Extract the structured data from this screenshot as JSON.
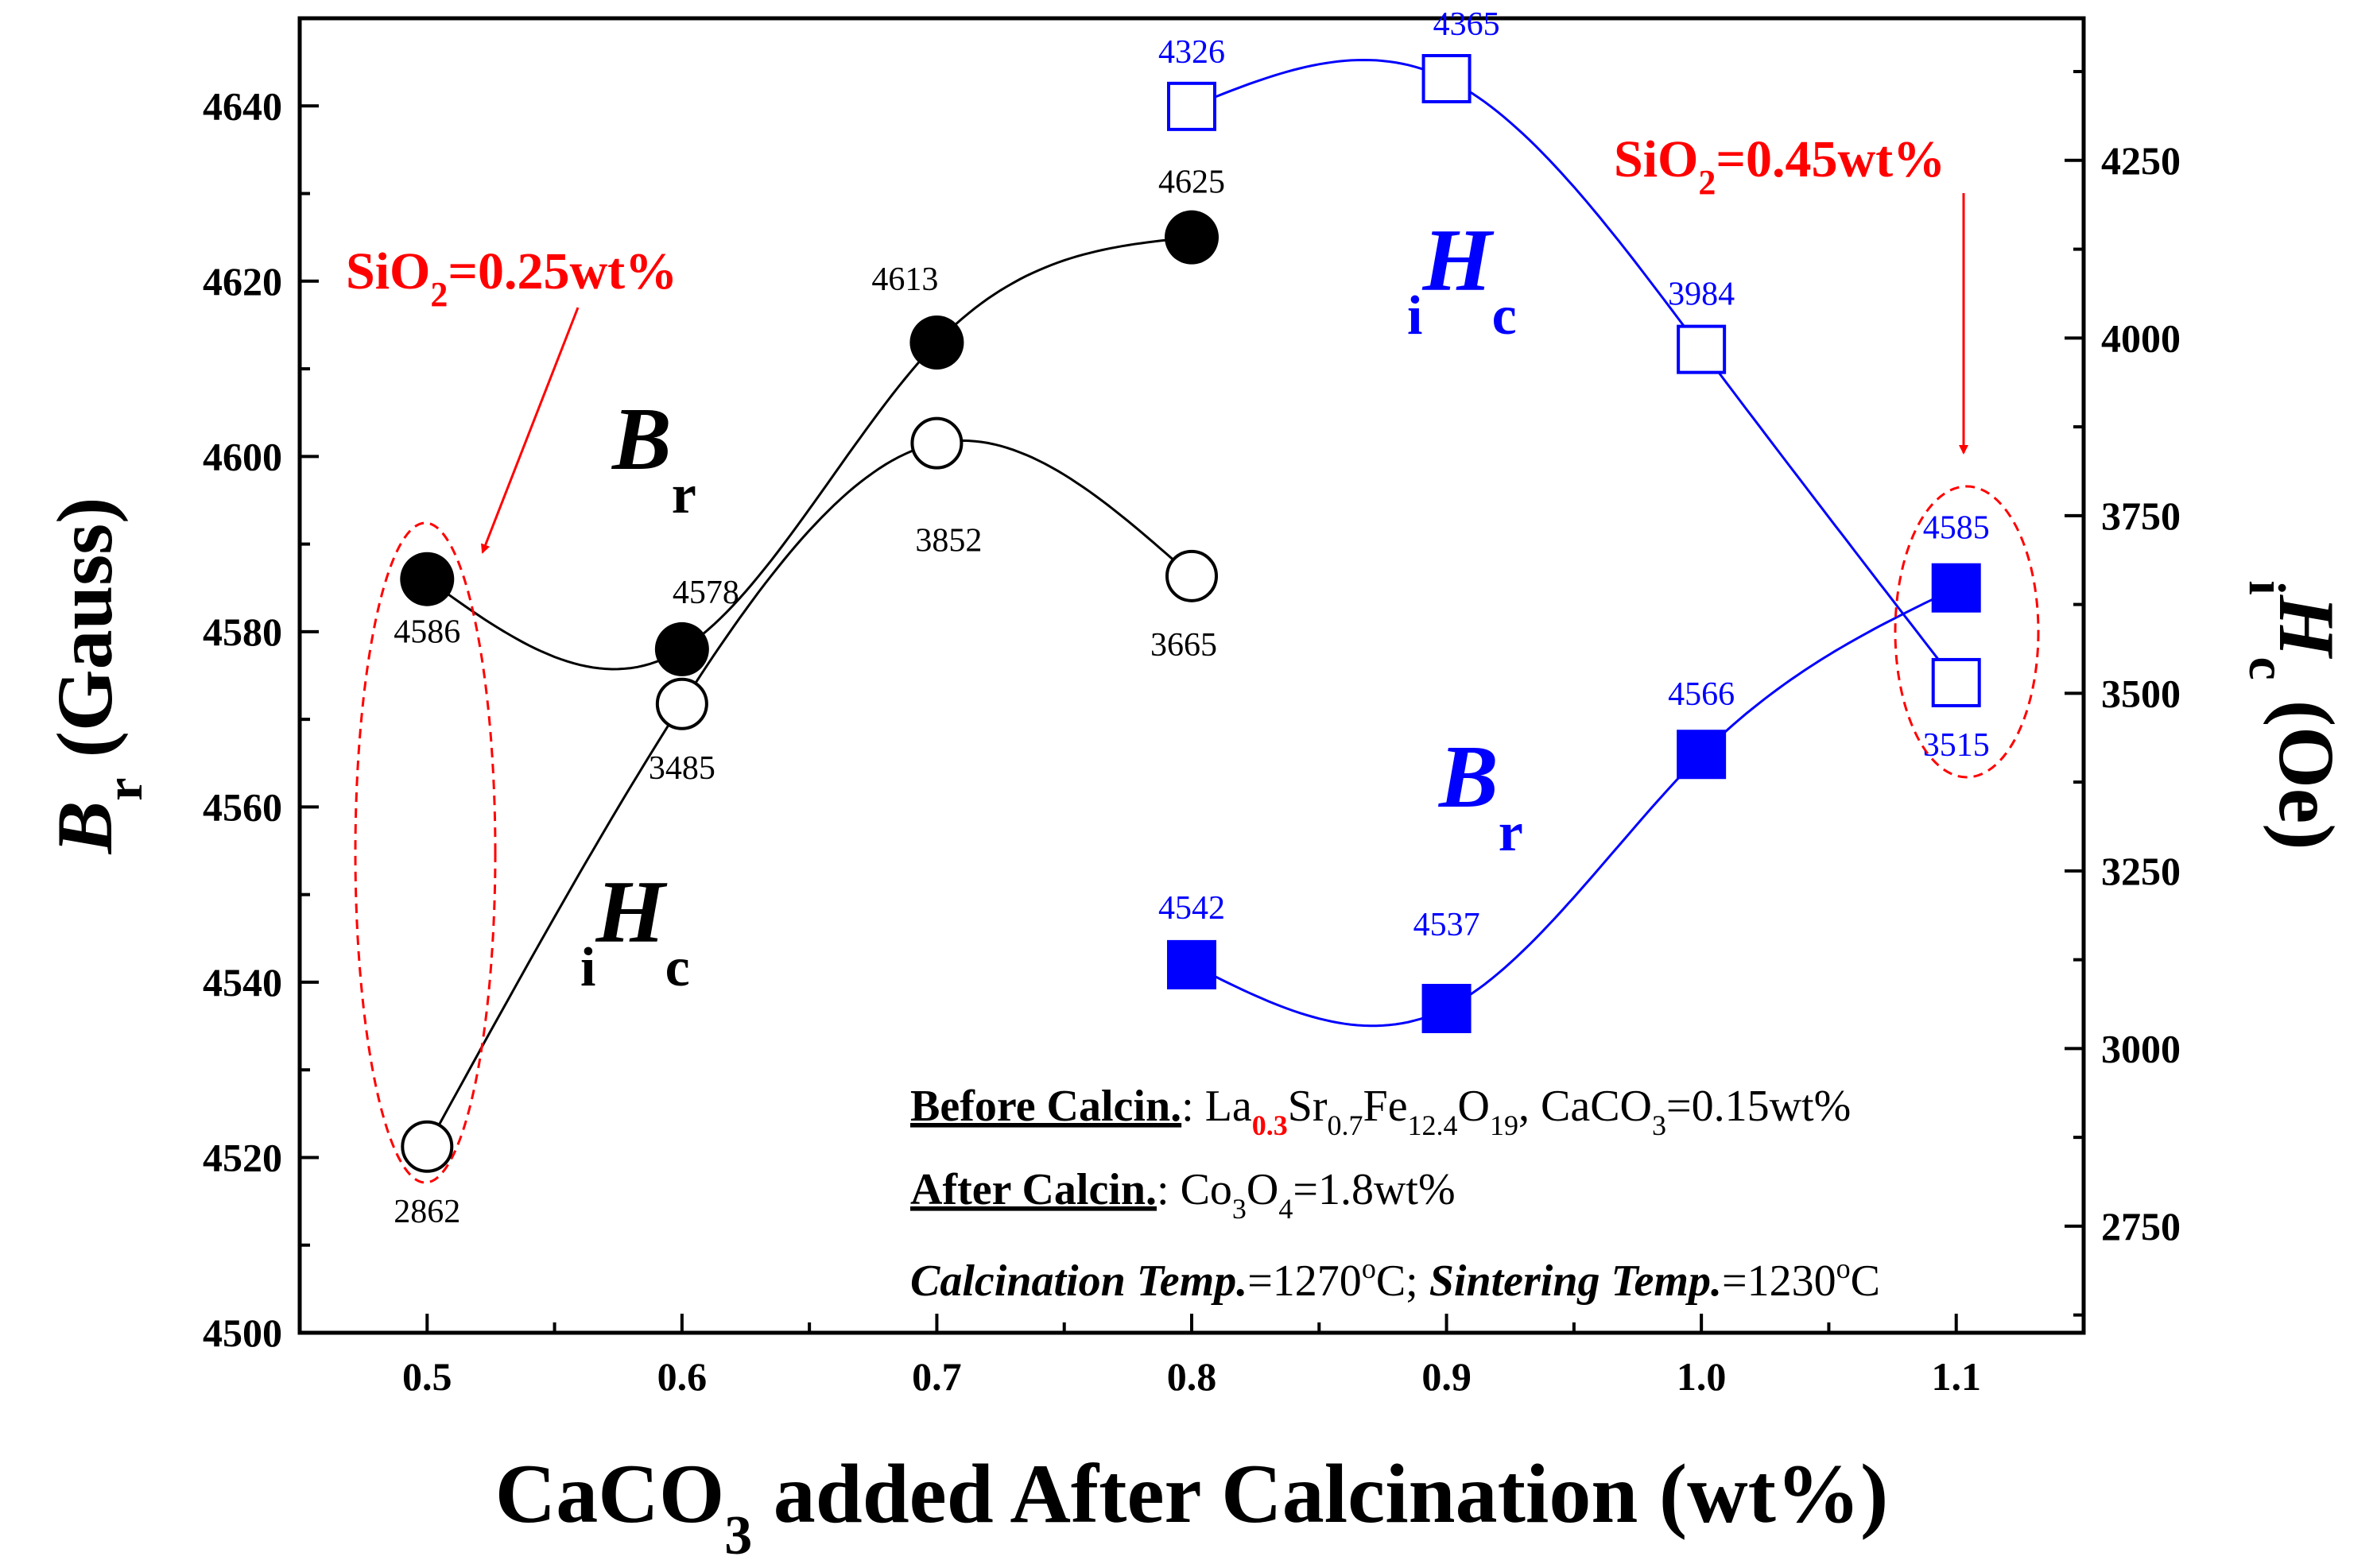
{
  "chart_data": {
    "type": "scatter",
    "xlabel": "CaCO3 added After Calcination (wt%)",
    "xlabel_parts": {
      "main": "CaCO",
      "sub": "3",
      "rest": " added After Calcination (wt%)"
    },
    "ylabel_left": "Br (Gauss)",
    "ylabel_left_parts": {
      "sym": "B",
      "sub": "r",
      "rest": " (Gauss)"
    },
    "ylabel_right": "iHc (Oe)",
    "ylabel_right_parts": {
      "pre": "i",
      "sym": "H",
      "sub": "c",
      "rest": " (Oe)"
    },
    "xlim": [
      0.45,
      1.15
    ],
    "ylim_left": [
      4500,
      4650
    ],
    "ylim_right": [
      2600,
      4450
    ],
    "x_ticks": [
      "0.5",
      "0.6",
      "0.7",
      "0.8",
      "0.9",
      "1.0",
      "1.1"
    ],
    "x_tick_values": [
      0.5,
      0.6,
      0.7,
      0.8,
      0.9,
      1.0,
      1.1
    ],
    "y_left_ticks": [
      4500,
      4520,
      4540,
      4560,
      4580,
      4600,
      4620,
      4640
    ],
    "y_right_ticks": [
      2750,
      3000,
      3250,
      3500,
      3750,
      4000,
      4250
    ],
    "series": [
      {
        "name": "Br (SiO2=0.25wt%)",
        "axis": "left",
        "marker": "filled-circle",
        "color": "#000000",
        "x": [
          0.5,
          0.6,
          0.7,
          0.8
        ],
        "values": [
          4586,
          4578,
          4613,
          4625
        ],
        "labels": [
          "4586",
          "4578",
          "4613",
          "4625"
        ]
      },
      {
        "name": "iHc (SiO2=0.25wt%)",
        "axis": "right",
        "marker": "open-circle",
        "color": "#000000",
        "x": [
          0.5,
          0.6,
          0.7,
          0.8
        ],
        "values": [
          2862,
          3485,
          3852,
          3665
        ],
        "labels": [
          "2862",
          "3485",
          "3852",
          "3665"
        ]
      },
      {
        "name": "iHc (SiO2=0.45wt%)",
        "axis": "right",
        "marker": "open-square",
        "color": "#0000ff",
        "x": [
          0.8,
          0.9,
          1.0,
          1.1
        ],
        "values": [
          4326,
          4365,
          3984,
          3515
        ],
        "labels": [
          "4326",
          "4365",
          "3984",
          "3515"
        ]
      },
      {
        "name": "Br (SiO2=0.45wt%)",
        "axis": "left",
        "marker": "filled-square",
        "color": "#0000ff",
        "x": [
          0.8,
          0.9,
          1.0,
          1.1
        ],
        "values": [
          4542,
          4537,
          4566,
          4585
        ],
        "labels": [
          "4542",
          "4537",
          "4566",
          "4585"
        ]
      }
    ],
    "annotations": {
      "sio2_left": {
        "pre": "SiO",
        "sub": "2",
        "post": "=0.25wt%",
        "text": "SiO2=0.25wt%",
        "color": "#ff0000"
      },
      "sio2_right": {
        "pre": "SiO",
        "sub": "2",
        "post": "=0.45wt%",
        "text": "SiO2=0.45wt%",
        "color": "#ff0000"
      },
      "br_black": {
        "sym": "B",
        "sub": "r"
      },
      "hc_black": {
        "pre": "i",
        "sym": "H",
        "sub": "c"
      },
      "br_blue": {
        "sym": "B",
        "sub": "r"
      },
      "hc_blue": {
        "pre": "i",
        "sym": "H",
        "sub": "c"
      }
    },
    "info": {
      "line1_label": "Before Calcin.",
      "line1_sep": ": ",
      "line1_formula": "La0.3Sr0.7Fe12.4O19, CaCO3=0.15wt%",
      "line1_parts": {
        "la": "La",
        "la_sub": "0.3",
        "sr": "Sr",
        "sr_sub": "0.7",
        "fe": "Fe",
        "fe_sub": "12.4",
        "o": "O",
        "o_sub": "19",
        "ca": ", CaCO",
        "ca_sub": "3",
        "ca_end": "=0.15wt%"
      },
      "line2_label": "After Calcin.",
      "line2_sep": ": ",
      "line2_formula": "Co3O4=1.8wt%",
      "line2_parts": {
        "co": "Co",
        "co_sub": "3",
        "o": "O",
        "o_sub": "4",
        "end": "=1.8wt%"
      },
      "line3_label1": "Calcination Temp.",
      "line3_val1": "=1270",
      "line3_deg": "o",
      "line3_unit1": "C; ",
      "line3_label2": "Sintering Temp.",
      "line3_val2": "=1230",
      "line3_unit2": "C"
    },
    "colors": {
      "black": "#000000",
      "blue": "#0000ff",
      "red": "#ff0000"
    }
  }
}
